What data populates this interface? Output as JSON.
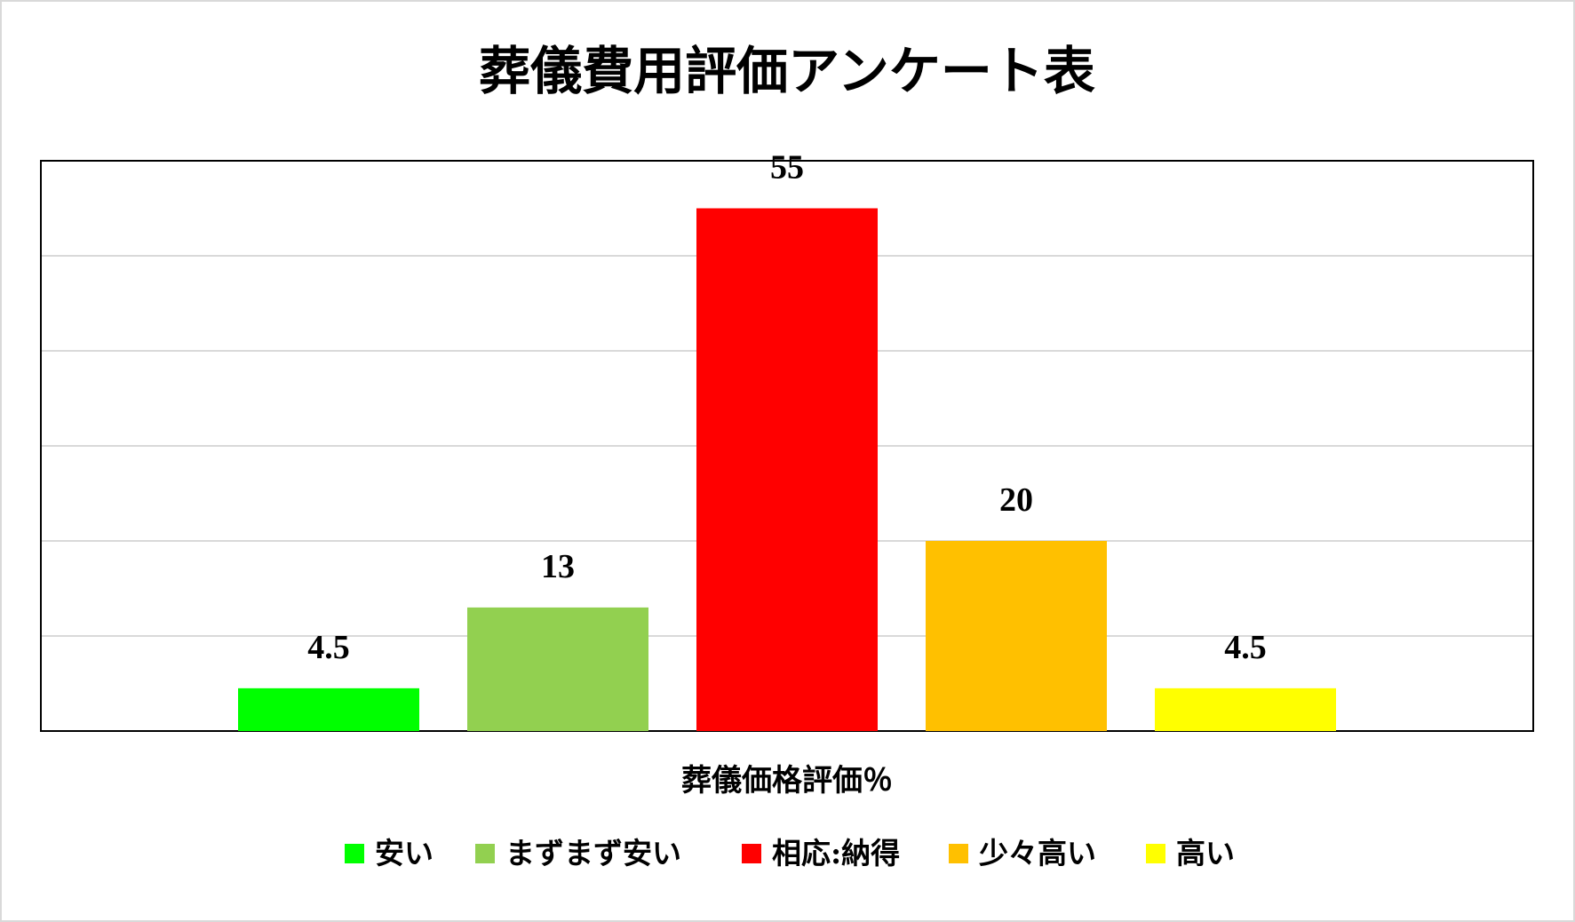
{
  "chart_data": {
    "type": "bar",
    "title": "葬儀費用評価アンケート表",
    "xlabel": "葬儀価格評価％",
    "ylabel": "",
    "categories": [
      "安い",
      "まずまず安い",
      "相応:納得",
      "少々高い",
      "高い"
    ],
    "values": [
      4.5,
      13,
      55,
      20,
      4.5
    ],
    "data_labels": [
      "4.5",
      "13",
      "55",
      "20",
      "4.5"
    ],
    "colors": [
      "#00ff00",
      "#92d050",
      "#ff0000",
      "#ffc000",
      "#ffff00"
    ],
    "ylim": [
      0,
      60
    ],
    "grid": true,
    "legend": "bottom"
  }
}
